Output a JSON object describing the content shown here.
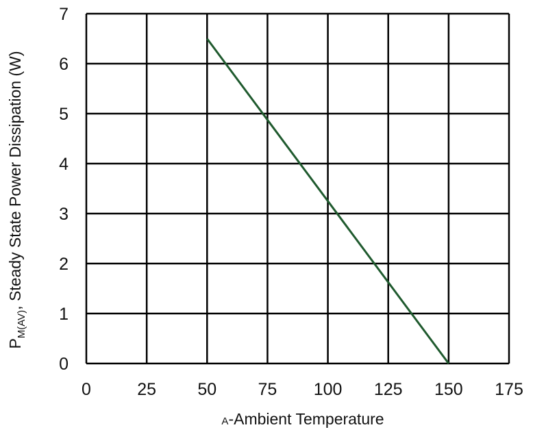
{
  "chart_data": {
    "type": "line",
    "xlabel_sub": "A",
    "xlabel": "-Ambient Temperature",
    "ylabel_main": "P",
    "ylabel_sub": "M(AV)",
    "ylabel": ", Steady State Power Dissipation (W)",
    "xlim": [
      0,
      175
    ],
    "ylim": [
      0,
      7
    ],
    "x_ticks": [
      "0",
      "25",
      "50",
      "75",
      "100",
      "125",
      "150",
      "175"
    ],
    "y_ticks": [
      "0",
      "1",
      "2",
      "3",
      "4",
      "5",
      "6",
      "7"
    ],
    "grid": true,
    "series": [
      {
        "x": [
          50,
          150
        ],
        "y": [
          6.5,
          0
        ],
        "color": "#1f5a2e"
      }
    ]
  }
}
